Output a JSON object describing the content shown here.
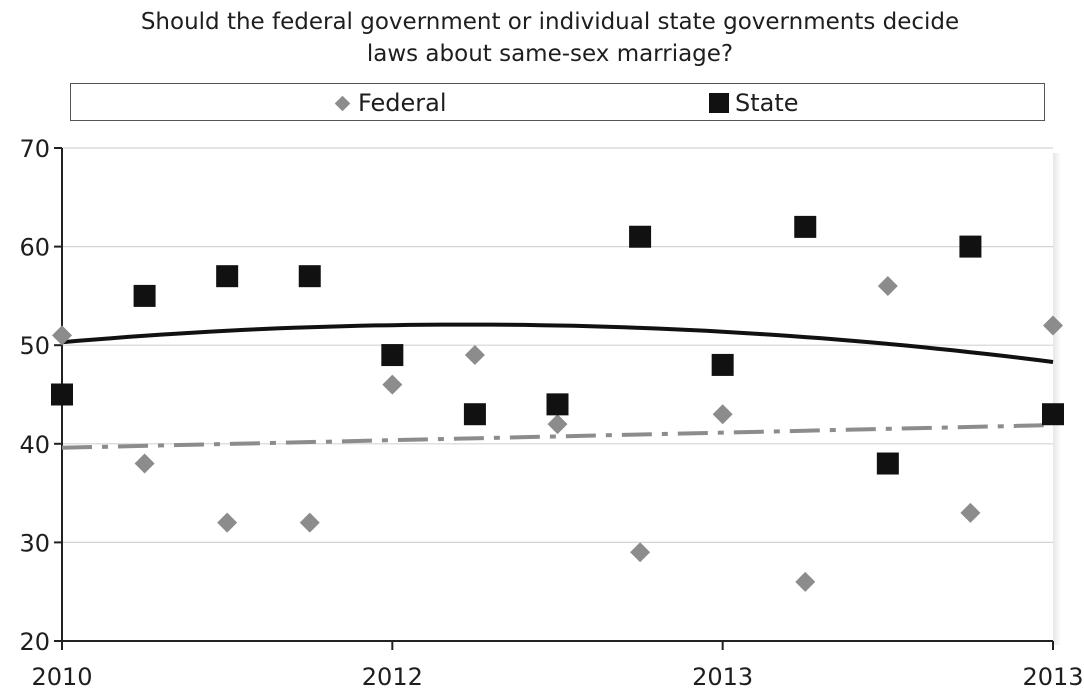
{
  "chart_data": {
    "type": "scatter",
    "title": [
      "Should the federal government or individual state governments decide",
      "laws about same-sex marriage?"
    ],
    "xlabel": "",
    "ylabel": "",
    "x_tick_labels": [
      "2010",
      "2012",
      "2013",
      "2013"
    ],
    "x_tick_index": [
      0,
      4,
      8,
      12
    ],
    "ylim": [
      20,
      70
    ],
    "yticks": [
      20,
      30,
      40,
      50,
      60,
      70
    ],
    "grid": true,
    "legend_position": "top",
    "series": [
      {
        "name": "Federal",
        "marker": "diamond",
        "color": "#8c8c8c",
        "values": [
          51,
          38,
          32,
          32,
          46,
          49,
          42,
          29,
          43,
          26,
          56,
          33,
          52
        ],
        "trend": {
          "type": "linear",
          "style": "dash-dot",
          "start": 39.6,
          "end": 41.9
        }
      },
      {
        "name": "State",
        "marker": "square",
        "color": "#111111",
        "values": [
          45,
          55,
          57,
          57,
          49,
          43,
          44,
          61,
          48,
          62,
          38,
          60,
          43
        ],
        "trend": {
          "type": "polynomial",
          "style": "solid",
          "start": 50.3,
          "peak": 52.0,
          "end": 48.3
        }
      }
    ]
  }
}
